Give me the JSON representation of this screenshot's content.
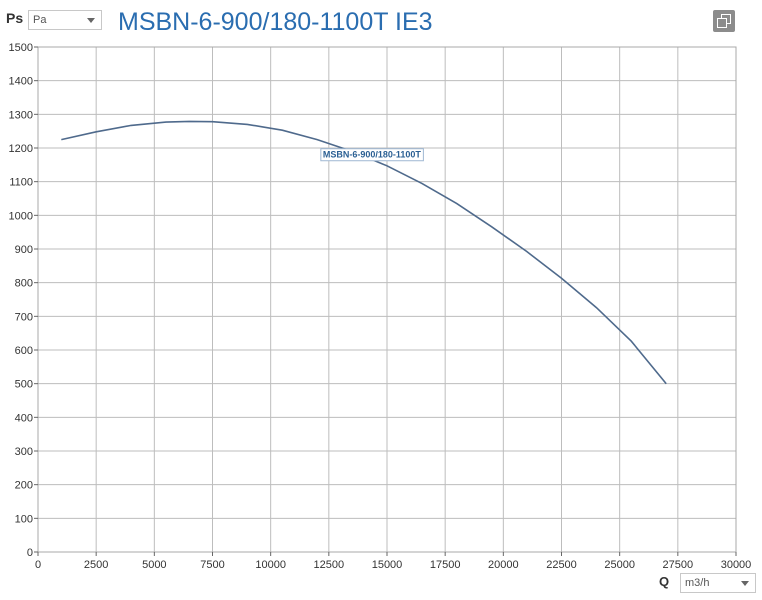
{
  "header": {
    "y_axis_symbol": "Ps",
    "y_unit_selected": "Pa",
    "title": "MSBN-6-900/180-1100T IE3",
    "copy_icon": "copy-icon"
  },
  "footer": {
    "x_axis_symbol": "Q",
    "x_unit_selected": "m3/h"
  },
  "chart_data": {
    "type": "line",
    "title": "MSBN-6-900/180-1100T IE3",
    "xlabel": "Q",
    "ylabel": "Ps",
    "xlim": [
      0,
      30000
    ],
    "ylim": [
      0,
      1500
    ],
    "x_ticks": [
      0,
      2500,
      5000,
      7500,
      10000,
      12500,
      15000,
      17500,
      20000,
      22500,
      25000,
      27500,
      30000
    ],
    "y_ticks": [
      0,
      100,
      200,
      300,
      400,
      500,
      600,
      700,
      800,
      900,
      1000,
      1100,
      1200,
      1300,
      1400,
      1500
    ],
    "grid": true,
    "series": [
      {
        "name": "MSBN-6-900/180-1100T",
        "color": "#4f6a8c",
        "x": [
          1000,
          2500,
          4000,
          5500,
          6500,
          7500,
          9000,
          10500,
          12000,
          13500,
          15000,
          16500,
          18000,
          19500,
          21000,
          22500,
          24000,
          25500,
          27000
        ],
        "y": [
          1225,
          1248,
          1267,
          1277,
          1279,
          1278,
          1270,
          1253,
          1225,
          1190,
          1147,
          1095,
          1035,
          966,
          893,
          813,
          726,
          626,
          500
        ]
      }
    ]
  }
}
